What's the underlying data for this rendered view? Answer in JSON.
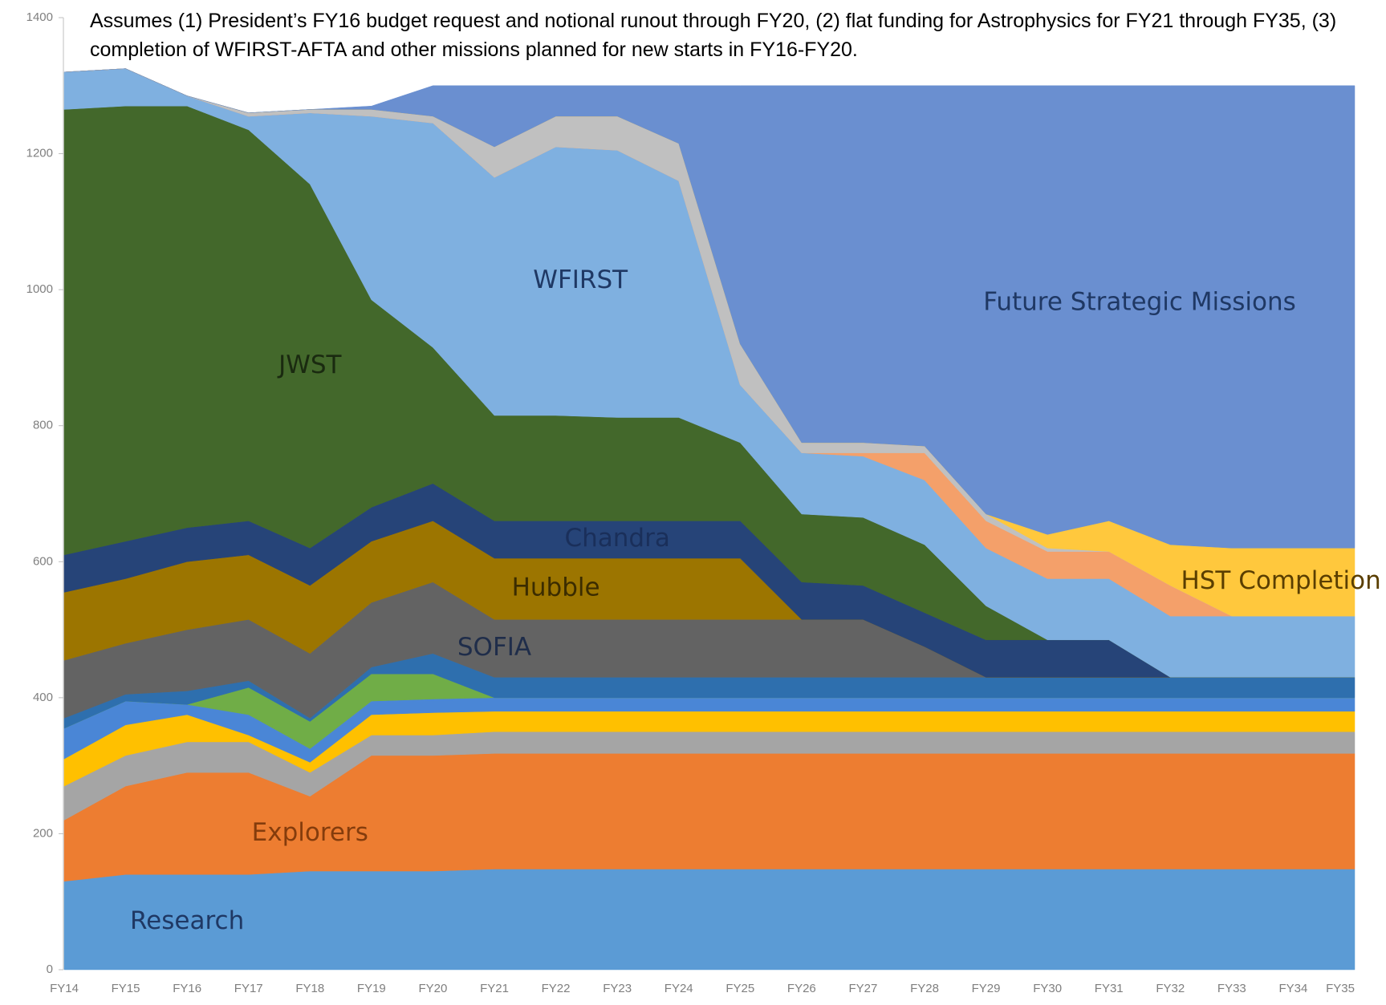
{
  "chart_data": {
    "type": "stacked_area",
    "title": "Assumes (1) President’s FY16 budget request and notional runout through FY20, (2) flat funding for Astrophysics for FY21 through FY35, (3) completion of WFIRST-AFTA and other missions planned for new starts in FY16-FY20.",
    "categories": [
      "FY14",
      "FY15",
      "FY16",
      "FY17",
      "FY18",
      "FY19",
      "FY20",
      "FY21",
      "FY22",
      "FY23",
      "FY24",
      "FY25",
      "FY26",
      "FY27",
      "FY28",
      "FY29",
      "FY30",
      "FY31",
      "FY32",
      "FY33",
      "FY34",
      "FY35"
    ],
    "ylim": [
      0,
      1400
    ],
    "yticks": [
      0,
      200,
      400,
      600,
      800,
      1000,
      1200,
      1400
    ],
    "series": [
      {
        "name": "Research",
        "color": "#5b9bd5",
        "values": [
          130,
          140,
          140,
          140,
          145,
          145,
          145,
          148,
          148,
          148,
          148,
          148,
          148,
          148,
          148,
          148,
          148,
          148,
          148,
          148,
          148,
          148
        ]
      },
      {
        "name": "Explorers",
        "color": "#ed7d31",
        "values": [
          90,
          130,
          150,
          150,
          110,
          170,
          170,
          170,
          170,
          170,
          170,
          170,
          170,
          170,
          170,
          170,
          170,
          170,
          170,
          170,
          170,
          170
        ]
      },
      {
        "color": "#a5a5a5",
        "values": [
          50,
          45,
          45,
          45,
          35,
          30,
          30,
          32,
          32,
          32,
          32,
          32,
          32,
          32,
          32,
          32,
          32,
          32,
          32,
          32,
          32,
          32
        ]
      },
      {
        "color": "#ffc000",
        "values": [
          40,
          45,
          40,
          10,
          15,
          30,
          33,
          30,
          30,
          30,
          30,
          30,
          30,
          30,
          30,
          30,
          30,
          30,
          30,
          30,
          30,
          30
        ]
      },
      {
        "color": "#4a86d6",
        "values": [
          45,
          35,
          15,
          30,
          20,
          20,
          20,
          20,
          20,
          20,
          20,
          20,
          20,
          20,
          20,
          20,
          20,
          20,
          20,
          20,
          20,
          20
        ]
      },
      {
        "color": "#70ad47",
        "values": [
          0,
          0,
          0,
          40,
          40,
          40,
          37,
          0,
          0,
          0,
          0,
          0,
          0,
          0,
          0,
          0,
          0,
          0,
          0,
          0,
          0,
          0
        ]
      },
      {
        "color": "#2e6fae",
        "values": [
          15,
          10,
          20,
          10,
          5,
          10,
          30,
          30,
          30,
          30,
          30,
          30,
          30,
          30,
          30,
          30,
          30,
          30,
          30,
          30,
          30,
          30
        ]
      },
      {
        "name": "SOFIA",
        "color": "#636363",
        "values": [
          85,
          75,
          90,
          90,
          95,
          95,
          105,
          85,
          85,
          85,
          85,
          85,
          85,
          85,
          45,
          0,
          0,
          0,
          0,
          0,
          0,
          0
        ]
      },
      {
        "name": "Hubble",
        "color": "#9c7500",
        "values": [
          100,
          95,
          100,
          95,
          100,
          90,
          90,
          90,
          90,
          90,
          90,
          90,
          0,
          0,
          0,
          0,
          0,
          0,
          0,
          0,
          0,
          0
        ]
      },
      {
        "name": "Chandra",
        "color": "#264478",
        "values": [
          55,
          55,
          50,
          50,
          55,
          50,
          55,
          55,
          55,
          55,
          55,
          55,
          55,
          50,
          50,
          55,
          55,
          55,
          0,
          0,
          0,
          0
        ]
      },
      {
        "name": "JWST",
        "color": "#43682b",
        "values": [
          655,
          640,
          620,
          575,
          535,
          305,
          200,
          155,
          155,
          152,
          152,
          115,
          100,
          100,
          100,
          50,
          0,
          0,
          0,
          0,
          0,
          0
        ]
      },
      {
        "name": "WFIRST",
        "color": "#7fb0e0",
        "values": [
          55,
          55,
          15,
          20,
          105,
          270,
          330,
          350,
          395,
          393,
          348,
          85,
          90,
          90,
          95,
          85,
          90,
          90,
          90,
          90,
          90,
          90
        ]
      },
      {
        "color": "#f4a06a",
        "values": [
          0,
          0,
          0,
          0,
          0,
          0,
          0,
          0,
          0,
          0,
          0,
          0,
          0,
          5,
          40,
          40,
          40,
          40,
          45,
          0,
          0,
          0
        ]
      },
      {
        "color": "#c0c0c0",
        "values": [
          0,
          0,
          0,
          5,
          5,
          10,
          10,
          45,
          45,
          50,
          55,
          60,
          15,
          15,
          10,
          10,
          5,
          0,
          0,
          0,
          0,
          0
        ]
      },
      {
        "name": "HST Completion",
        "color": "#ffc83d",
        "values": [
          0,
          0,
          0,
          0,
          0,
          0,
          0,
          0,
          0,
          0,
          0,
          0,
          0,
          0,
          0,
          0,
          20,
          45,
          60,
          100,
          100,
          100
        ]
      },
      {
        "name": "Future Strategic Missions",
        "color": "#6a8fd0",
        "values": [
          0,
          0,
          0,
          0,
          0,
          5,
          45,
          90,
          45,
          45,
          85,
          380,
          525,
          525,
          530,
          630,
          660,
          640,
          675,
          680,
          680,
          680
        ]
      }
    ]
  }
}
